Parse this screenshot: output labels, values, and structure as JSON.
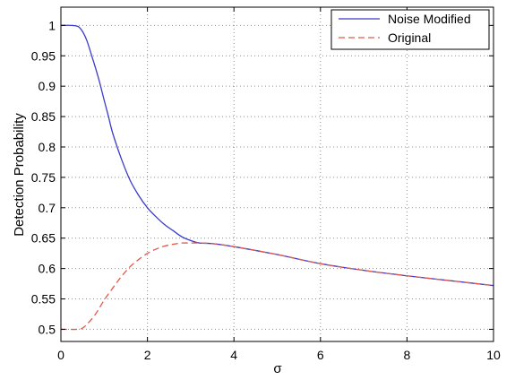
{
  "chart_data": {
    "type": "line",
    "title": "",
    "xlabel": "σ",
    "ylabel": "Detection Probability",
    "xlim": [
      0,
      10
    ],
    "ylim": [
      0.48,
      1.03
    ],
    "xticks": [
      0,
      2,
      4,
      6,
      8,
      10
    ],
    "yticks": [
      0.5,
      0.55,
      0.6,
      0.65,
      0.7,
      0.75,
      0.8,
      0.85,
      0.9,
      0.95,
      1
    ],
    "xtick_labels": [
      "0",
      "2",
      "4",
      "6",
      "8",
      "10"
    ],
    "ytick_labels": [
      "0.5",
      "0.55",
      "0.6",
      "0.65",
      "0.7",
      "0.75",
      "0.8",
      "0.85",
      "0.9",
      "0.95",
      "1"
    ],
    "grid": true,
    "legend_position": "top-right",
    "series": [
      {
        "name": "Noise Modified",
        "color": "#3b3bcc",
        "dash": "solid",
        "x": [
          0,
          0.25,
          0.4,
          0.5,
          0.6,
          0.7,
          0.8,
          0.9,
          1.0,
          1.1,
          1.2,
          1.4,
          1.6,
          1.8,
          2.0,
          2.2,
          2.4,
          2.6,
          2.8,
          3.0,
          3.2,
          3.5,
          4.0,
          5.0,
          6.0,
          7.0,
          8.0,
          9.0,
          10.0
        ],
        "y": [
          1.0,
          1.0,
          0.998,
          0.99,
          0.975,
          0.953,
          0.93,
          0.905,
          0.877,
          0.85,
          0.822,
          0.78,
          0.745,
          0.72,
          0.7,
          0.685,
          0.672,
          0.662,
          0.652,
          0.646,
          0.642,
          0.641,
          0.636,
          0.623,
          0.608,
          0.597,
          0.588,
          0.58,
          0.572
        ]
      },
      {
        "name": "Original",
        "color": "#e05a4a",
        "dash": "dashed",
        "x": [
          0,
          0.4,
          0.5,
          0.6,
          0.8,
          1.0,
          1.2,
          1.4,
          1.6,
          1.8,
          2.0,
          2.2,
          2.4,
          2.6,
          2.8,
          3.0,
          3.2,
          3.5,
          4.0,
          5.0,
          6.0,
          7.0,
          8.0,
          9.0,
          10.0
        ],
        "y": [
          0.5,
          0.5,
          0.502,
          0.508,
          0.525,
          0.548,
          0.568,
          0.587,
          0.603,
          0.615,
          0.625,
          0.632,
          0.637,
          0.64,
          0.642,
          0.642,
          0.642,
          0.641,
          0.636,
          0.623,
          0.608,
          0.597,
          0.588,
          0.58,
          0.572
        ]
      }
    ]
  }
}
